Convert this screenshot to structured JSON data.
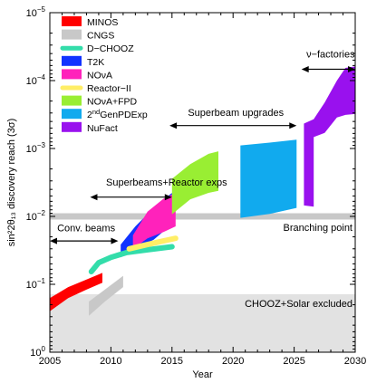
{
  "chart_data": {
    "type": "area",
    "xlabel": "Year",
    "ylabel": "sin²2θ₁₃ discovery reach (3σ)",
    "xlim": [
      2005,
      2030
    ],
    "ylim": [
      1e-05,
      1
    ],
    "y_scale": "log",
    "y_inverted": true,
    "x_ticks": [
      {
        "value": 2005,
        "label": "2005"
      },
      {
        "value": 2010,
        "label": "2010"
      },
      {
        "value": 2015,
        "label": "2015"
      },
      {
        "value": 2020,
        "label": "2020"
      },
      {
        "value": 2025,
        "label": "2025"
      },
      {
        "value": 2030,
        "label": "2030"
      }
    ],
    "y_ticks": [
      {
        "value": 1e-05,
        "base": "10",
        "exp": "−5"
      },
      {
        "value": 0.0001,
        "base": "10",
        "exp": "−4"
      },
      {
        "value": 0.001,
        "base": "10",
        "exp": "−3"
      },
      {
        "value": 0.01,
        "base": "10",
        "exp": "−2"
      },
      {
        "value": 0.1,
        "base": "10",
        "exp": "−1"
      },
      {
        "value": 1,
        "base": "10",
        "exp": "0"
      }
    ],
    "excluded_region": {
      "label": "CHOOZ+Solar excluded",
      "y_from": 0.14,
      "y_to": 1,
      "color": "#e2e2e2"
    },
    "branching_point": {
      "label": "Branching point",
      "y": 0.01,
      "color": "#c8c8c8"
    },
    "legend": [
      {
        "name": "MINOS",
        "color": "#ff0000",
        "style": "patch"
      },
      {
        "name": "CNGS",
        "color": "#c8c8c8",
        "style": "patch"
      },
      {
        "name": "D−CHOOZ",
        "color": "#33ddaa",
        "style": "line"
      },
      {
        "name": "T2K",
        "color": "#1133ff",
        "style": "patch"
      },
      {
        "name": "NO<sub>ν</sub>A",
        "display": "NOνA",
        "color": "#ff22bb",
        "style": "patch"
      },
      {
        "name": "Reactor−II",
        "color": "#ffee66",
        "style": "line"
      },
      {
        "name": "NOνA+FPD",
        "color": "#99ee33",
        "style": "patch"
      },
      {
        "name": "2ndGenPDExp",
        "sup": "nd",
        "pre": "2",
        "post": "GenPDExp",
        "color": "#11aaee",
        "style": "patch"
      },
      {
        "name": "NuFact",
        "color": "#9911ee",
        "style": "patch"
      }
    ],
    "bands": [
      {
        "name": "MINOS",
        "color": "#ff0000",
        "upper": [
          [
            2005,
            0.16
          ],
          [
            2006.5,
            0.11
          ],
          [
            2008,
            0.085
          ],
          [
            2009.3,
            0.068
          ]
        ],
        "lower": [
          [
            2009.3,
            0.095
          ],
          [
            2008,
            0.12
          ],
          [
            2006.5,
            0.16
          ],
          [
            2005,
            0.25
          ]
        ]
      },
      {
        "name": "CNGS",
        "color": "#c8c8c8",
        "upper": [
          [
            2008.2,
            0.18
          ],
          [
            2009.5,
            0.12
          ],
          [
            2011,
            0.075
          ]
        ],
        "lower": [
          [
            2011,
            0.11
          ],
          [
            2009.5,
            0.18
          ],
          [
            2008.2,
            0.29
          ]
        ]
      },
      {
        "name": "T2K",
        "color": "#1133ff",
        "upper": [
          [
            2010.8,
            0.026
          ],
          [
            2012,
            0.014
          ],
          [
            2013.5,
            0.0075
          ],
          [
            2015,
            0.0045
          ]
        ],
        "lower": [
          [
            2015,
            0.013
          ],
          [
            2013.5,
            0.022
          ],
          [
            2012,
            0.03
          ],
          [
            2010.8,
            0.04
          ]
        ]
      },
      {
        "name": "NOνA",
        "color": "#ff22bb",
        "upper": [
          [
            2011.8,
            0.019
          ],
          [
            2013,
            0.0085
          ],
          [
            2014.3,
            0.0055
          ],
          [
            2015.3,
            0.0045
          ]
        ],
        "lower": [
          [
            2015.3,
            0.014
          ],
          [
            2014.3,
            0.017
          ],
          [
            2013,
            0.021
          ],
          [
            2011.8,
            0.03
          ]
        ]
      },
      {
        "name": "NOνA+FPD",
        "color": "#99ee33",
        "upper": [
          [
            2015,
            0.0028
          ],
          [
            2016.5,
            0.0017
          ],
          [
            2018,
            0.0012
          ],
          [
            2018.8,
            0.0011
          ]
        ],
        "lower": [
          [
            2018.8,
            0.0042
          ],
          [
            2018,
            0.0045
          ],
          [
            2016.5,
            0.0056
          ],
          [
            2015,
            0.0093
          ]
        ]
      },
      {
        "name": "2ndGenPDExp",
        "color": "#11aaee",
        "upper": [
          [
            2020.6,
            0.0009
          ],
          [
            2023,
            0.00082
          ],
          [
            2025.2,
            0.00074
          ]
        ],
        "lower": [
          [
            2025.2,
            0.0075
          ],
          [
            2023,
            0.0092
          ],
          [
            2020.6,
            0.0105
          ]
        ]
      },
      {
        "name": "NuFact",
        "color": "#9911ee",
        "upper": [
          [
            2025.8,
            0.00043
          ],
          [
            2026.6,
            0.00037
          ],
          [
            2027.5,
            0.00021
          ],
          [
            2028.5,
            0.0001
          ],
          [
            2029.2,
            6.5e-05
          ],
          [
            2030,
            6.2e-05
          ]
        ],
        "lower": [
          [
            2030,
            0.00031
          ],
          [
            2029.2,
            0.00032
          ],
          [
            2028.5,
            0.00035
          ],
          [
            2027.5,
            0.00059
          ],
          [
            2026.6,
            0.00068
          ],
          [
            2026.6,
            0.0072
          ],
          [
            2025.8,
            0.0069
          ]
        ]
      }
    ],
    "lines": [
      {
        "name": "D−CHOOZ",
        "color": "#33ddaa",
        "width": 6,
        "points": [
          [
            2008.4,
            0.065
          ],
          [
            2009,
            0.048
          ],
          [
            2010,
            0.04
          ],
          [
            2011.3,
            0.034
          ],
          [
            2013,
            0.031
          ],
          [
            2015,
            0.028
          ]
        ]
      },
      {
        "name": "Reactor−II",
        "color": "#ffee66",
        "width": 6,
        "points": [
          [
            2011.5,
            0.03
          ],
          [
            2013,
            0.026
          ],
          [
            2014.3,
            0.023
          ],
          [
            2015.3,
            0.021
          ]
        ]
      }
    ],
    "annotations": [
      {
        "label": "Conv. beams",
        "x_from": 2005,
        "x_to": 2010.6,
        "y": 0.023,
        "label_x": 2005.6,
        "label_y": 0.0165
      },
      {
        "label": "Superbeams+Reactor exps",
        "x_from": 2008.3,
        "x_to": 2015,
        "y": 0.0052,
        "label_x": 2009.6,
        "label_y": 0.0035
      },
      {
        "label": "Superbeam upgrades",
        "x_from": 2014.8,
        "x_to": 2025.2,
        "y": 0.00046,
        "label_x": 2016.3,
        "label_y": 0.00033
      },
      {
        "label": "ν−factories",
        "x_from": 2025.6,
        "x_to": 2030,
        "y": 6.8e-05,
        "label_x": 2026,
        "label_y": 4.6e-05
      }
    ]
  }
}
